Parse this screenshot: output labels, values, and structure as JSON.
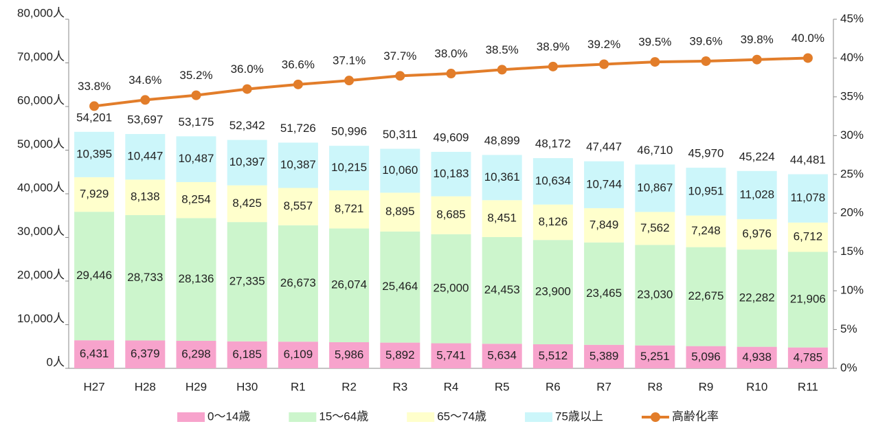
{
  "chart_data": {
    "type": "bar",
    "stacked": true,
    "categories": [
      "H27",
      "H28",
      "H29",
      "H30",
      "R1",
      "R2",
      "R3",
      "R4",
      "R5",
      "R6",
      "R7",
      "R8",
      "R9",
      "R10",
      "R11"
    ],
    "series": [
      {
        "name": "0～14歳",
        "color": "#f7a3cc",
        "values": [
          6431,
          6379,
          6298,
          6185,
          6109,
          5986,
          5892,
          5741,
          5634,
          5512,
          5389,
          5251,
          5096,
          4938,
          4785
        ],
        "value_labels": [
          "6,431",
          "6,379",
          "6,298",
          "6,185",
          "6,109",
          "5,986",
          "5,892",
          "5,741",
          "5,634",
          "5,512",
          "5,389",
          "5,251",
          "5,096",
          "4,938",
          "4,785"
        ]
      },
      {
        "name": "15～64歳",
        "color": "#ccf5cc",
        "values": [
          29446,
          28733,
          28136,
          27335,
          26673,
          26074,
          25464,
          25000,
          24453,
          23900,
          23465,
          23030,
          22675,
          22282,
          21906
        ],
        "value_labels": [
          "29,446",
          "28,733",
          "28,136",
          "27,335",
          "26,673",
          "26,074",
          "25,464",
          "25,000",
          "24,453",
          "23,900",
          "23,465",
          "23,030",
          "22,675",
          "22,282",
          "21,906"
        ]
      },
      {
        "name": "65～74歳",
        "color": "#ffffcc",
        "values": [
          7929,
          8138,
          8254,
          8425,
          8557,
          8721,
          8895,
          8685,
          8451,
          8126,
          7849,
          7562,
          7248,
          6976,
          6712
        ],
        "value_labels": [
          "7,929",
          "8,138",
          "8,254",
          "8,425",
          "8,557",
          "8,721",
          "8,895",
          "8,685",
          "8,451",
          "8,126",
          "7,849",
          "7,562",
          "7,248",
          "6,976",
          "6,712"
        ]
      },
      {
        "name": "75歳以上",
        "color": "#ccf6fa",
        "values": [
          10395,
          10447,
          10487,
          10397,
          10387,
          10215,
          10060,
          10183,
          10361,
          10634,
          10744,
          10867,
          10951,
          11028,
          11078
        ],
        "value_labels": [
          "10,395",
          "10,447",
          "10,487",
          "10,397",
          "10,387",
          "10,215",
          "10,060",
          "10,183",
          "10,361",
          "10,634",
          "10,744",
          "10,867",
          "10,951",
          "11,028",
          "11,078"
        ]
      },
      {
        "name": "高齢化率",
        "type": "line",
        "axis": "y2",
        "color": "#e27d2a",
        "values": [
          33.8,
          34.6,
          35.2,
          36.0,
          36.6,
          37.1,
          37.7,
          38.0,
          38.5,
          38.9,
          39.2,
          39.5,
          39.6,
          39.8,
          40.0
        ],
        "value_labels": [
          "33.8%",
          "34.6%",
          "35.2%",
          "36.0%",
          "36.6%",
          "37.1%",
          "37.7%",
          "38.0%",
          "38.5%",
          "38.9%",
          "39.2%",
          "39.5%",
          "39.6%",
          "39.8%",
          "40.0%"
        ]
      }
    ],
    "total_labels": [
      "54,201",
      "53,697",
      "53,175",
      "52,342",
      "51,726",
      "50,996",
      "50,311",
      "49,609",
      "48,899",
      "48,172",
      "47,447",
      "46,710",
      "45,970",
      "45,224",
      "44,481"
    ],
    "ylim": [
      0,
      80000
    ],
    "yticks": [
      {
        "value": 0,
        "label": "0人"
      },
      {
        "value": 10000,
        "label": "10,000人"
      },
      {
        "value": 20000,
        "label": "20,000人"
      },
      {
        "value": 30000,
        "label": "30,000人"
      },
      {
        "value": 40000,
        "label": "40,000人"
      },
      {
        "value": 50000,
        "label": "50,000人"
      },
      {
        "value": 60000,
        "label": "60,000人"
      },
      {
        "value": 70000,
        "label": "70,000人"
      },
      {
        "value": 80000,
        "label": "80,000人"
      }
    ],
    "y2lim": [
      0,
      45
    ],
    "y2ticks": [
      {
        "value": 0,
        "label": "0%"
      },
      {
        "value": 5,
        "label": "5%"
      },
      {
        "value": 10,
        "label": "10%"
      },
      {
        "value": 15,
        "label": "15%"
      },
      {
        "value": 20,
        "label": "20%"
      },
      {
        "value": 25,
        "label": "25%"
      },
      {
        "value": 30,
        "label": "30%"
      },
      {
        "value": 35,
        "label": "35%"
      },
      {
        "value": 40,
        "label": "40%"
      },
      {
        "value": 45,
        "label": "45%"
      }
    ],
    "grid": false,
    "legend": "bottom"
  }
}
